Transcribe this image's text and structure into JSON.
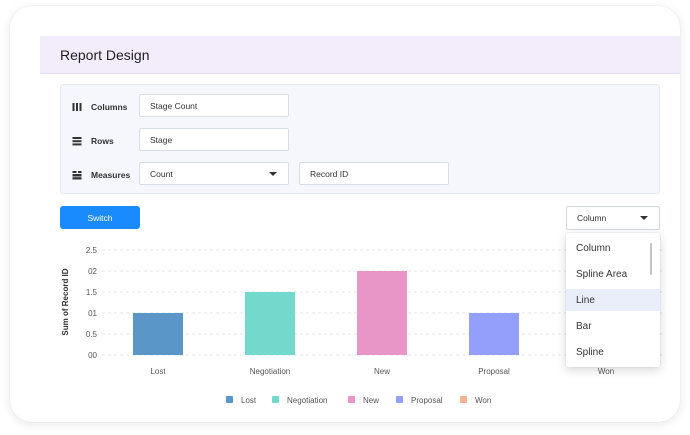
{
  "header": {
    "title": "Report Design"
  },
  "config": {
    "columns": {
      "label": "Columns",
      "value": "Stage Count"
    },
    "rows": {
      "label": "Rows",
      "value": "Stage"
    },
    "measures": {
      "label": "Measures",
      "aggregate": "Count",
      "field": "Record ID"
    }
  },
  "toolbar": {
    "switch_label": "Switch",
    "chart_type": "Column"
  },
  "dropdown": {
    "options": [
      "Column",
      "Spline Area",
      "Line",
      "Bar",
      "Spline"
    ],
    "highlighted": "Line"
  },
  "colors": {
    "accent": "#1a8bff",
    "header_bg": "#f3ecfb",
    "Lost": "#5b96c8",
    "Negotiation": "#72d9cc",
    "New": "#e796c7",
    "Proposal": "#929ffb",
    "Won": "#f6b392"
  },
  "chart_data": {
    "type": "bar",
    "categories": [
      "Lost",
      "Negotiation",
      "New",
      "Proposal",
      "Won"
    ],
    "series": [
      {
        "values": [
          0.01,
          0.015,
          0.02,
          0.01,
          null
        ]
      }
    ],
    "y_tick_labels": [
      "00",
      "0.5",
      "01",
      "1.5",
      "02",
      "2.5"
    ],
    "xlabel": "",
    "ylabel": "Sum of Record ID",
    "ylim": [
      0,
      0.025
    ],
    "grid": true,
    "legend": [
      "Lost",
      "Negotiation",
      "New",
      "Proposal",
      "Won"
    ],
    "legend_position": "bottom"
  }
}
